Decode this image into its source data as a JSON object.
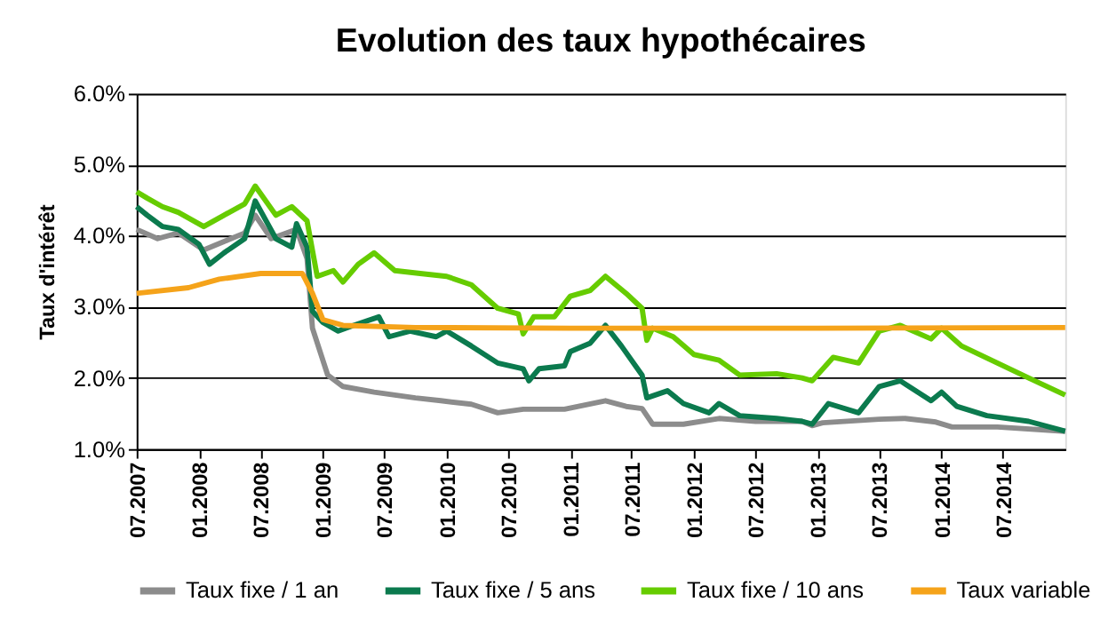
{
  "chart_data": {
    "type": "line",
    "title": "Evolution des taux hypothécaires",
    "ylabel": "Taux d'intérêt",
    "ylim": [
      1,
      6
    ],
    "yticks": [
      {
        "value": 1,
        "label": "1.0%"
      },
      {
        "value": 2,
        "label": "2.0%"
      },
      {
        "value": 3,
        "label": "3.0%"
      },
      {
        "value": 4,
        "label": "4.0%"
      },
      {
        "value": 5,
        "label": "5.0%"
      },
      {
        "value": 6,
        "label": "6.0%"
      }
    ],
    "xlim": [
      "2007-07-01",
      "2015-01-01"
    ],
    "xticks": [
      {
        "value": "2007-07-01",
        "label": "07.2007"
      },
      {
        "value": "2008-01-01",
        "label": "01.2008"
      },
      {
        "value": "2008-07-01",
        "label": "07.2008"
      },
      {
        "value": "2009-01-01",
        "label": "01.2009"
      },
      {
        "value": "2009-07-01",
        "label": "07.2009"
      },
      {
        "value": "2010-01-01",
        "label": "01.2010"
      },
      {
        "value": "2010-07-01",
        "label": "07.2010"
      },
      {
        "value": "2011-01-01",
        "label": "01.2011"
      },
      {
        "value": "2011-07-01",
        "label": "07.2011"
      },
      {
        "value": "2012-01-01",
        "label": "01.2012"
      },
      {
        "value": "2012-07-01",
        "label": "07.2012"
      },
      {
        "value": "2013-01-01",
        "label": "01.2013"
      },
      {
        "value": "2013-07-01",
        "label": "07.2013"
      },
      {
        "value": "2014-01-01",
        "label": "01.2014"
      },
      {
        "value": "2014-07-01",
        "label": "07.2014"
      }
    ],
    "grid": "y",
    "legend": "bottom",
    "marker": "none",
    "line_style": "solid",
    "series": [
      {
        "name": "Taux fixe / 1 an",
        "color": "#8c8c8c",
        "x": [
          "2007-07-01",
          "2007-09-01",
          "2007-11-01",
          "2008-01-15",
          "2008-03-15",
          "2008-05-15",
          "2008-06-15",
          "2008-08-01",
          "2008-10-15",
          "2008-11-15",
          "2008-12-01",
          "2009-01-15",
          "2009-03-01",
          "2009-06-01",
          "2009-10-01",
          "2009-12-15",
          "2010-03-15",
          "2010-06-01",
          "2010-08-15",
          "2010-12-15",
          "2011-04-15",
          "2011-06-15",
          "2011-08-01",
          "2011-09-01",
          "2011-12-01",
          "2012-03-15",
          "2012-07-01",
          "2012-11-15",
          "2012-12-15",
          "2013-01-15",
          "2013-07-01",
          "2013-09-15",
          "2013-12-15",
          "2014-02-01",
          "2014-06-15",
          "2015-01-01"
        ],
        "values": [
          4.09,
          3.96,
          4.04,
          3.8,
          3.92,
          4.04,
          4.29,
          3.96,
          4.09,
          3.68,
          2.7,
          2.04,
          1.88,
          1.8,
          1.72,
          1.68,
          1.63,
          1.51,
          1.56,
          1.56,
          1.68,
          1.6,
          1.57,
          1.35,
          1.35,
          1.43,
          1.39,
          1.39,
          1.33,
          1.37,
          1.42,
          1.43,
          1.38,
          1.31,
          1.31,
          1.25
        ]
      },
      {
        "name": "Taux fixe / 5 ans",
        "color": "#0b7a4e",
        "x": [
          "2007-07-01",
          "2007-08-01",
          "2007-09-15",
          "2007-11-01",
          "2008-01-01",
          "2008-02-01",
          "2008-03-15",
          "2008-05-15",
          "2008-06-15",
          "2008-08-15",
          "2008-10-01",
          "2008-10-15",
          "2008-11-15",
          "2008-12-01",
          "2009-01-01",
          "2009-02-15",
          "2009-04-01",
          "2009-06-15",
          "2009-07-15",
          "2009-09-15",
          "2009-12-01",
          "2010-01-01",
          "2010-03-15",
          "2010-06-01",
          "2010-08-15",
          "2010-09-01",
          "2010-10-01",
          "2010-12-15",
          "2011-01-01",
          "2011-03-01",
          "2011-04-15",
          "2011-06-01",
          "2011-08-01",
          "2011-08-15",
          "2011-10-15",
          "2011-12-01",
          "2012-02-15",
          "2012-03-15",
          "2012-05-15",
          "2012-09-01",
          "2012-11-15",
          "2012-12-15",
          "2013-02-01",
          "2013-05-01",
          "2013-07-01",
          "2013-09-01",
          "2013-12-01",
          "2014-01-01",
          "2014-02-15",
          "2014-05-15",
          "2014-09-15",
          "2015-01-01"
        ],
        "values": [
          4.41,
          4.29,
          4.13,
          4.09,
          3.88,
          3.6,
          3.76,
          3.96,
          4.49,
          3.96,
          3.84,
          4.17,
          3.84,
          2.94,
          2.78,
          2.66,
          2.74,
          2.86,
          2.58,
          2.66,
          2.58,
          2.66,
          2.45,
          2.21,
          2.13,
          1.96,
          2.13,
          2.17,
          2.37,
          2.49,
          2.74,
          2.45,
          2.04,
          1.72,
          1.82,
          1.64,
          1.51,
          1.64,
          1.47,
          1.43,
          1.39,
          1.35,
          1.64,
          1.51,
          1.88,
          1.96,
          1.68,
          1.8,
          1.6,
          1.47,
          1.39,
          1.25
        ]
      },
      {
        "name": "Taux fixe / 10 ans",
        "color": "#66cc00",
        "x": [
          "2007-07-01",
          "2007-08-01",
          "2007-09-15",
          "2007-11-01",
          "2008-01-15",
          "2008-03-15",
          "2008-05-15",
          "2008-06-15",
          "2008-08-15",
          "2008-10-01",
          "2008-11-15",
          "2008-12-15",
          "2009-02-01",
          "2009-03-01",
          "2009-04-15",
          "2009-06-01",
          "2009-08-01",
          "2009-10-15",
          "2010-01-01",
          "2010-03-15",
          "2010-06-01",
          "2010-08-01",
          "2010-08-15",
          "2010-09-15",
          "2010-11-15",
          "2011-01-01",
          "2011-03-01",
          "2011-04-15",
          "2011-06-15",
          "2011-08-01",
          "2011-08-15",
          "2011-09-01",
          "2011-11-01",
          "2012-01-01",
          "2012-03-15",
          "2012-05-15",
          "2012-09-01",
          "2012-11-15",
          "2012-12-15",
          "2013-02-15",
          "2013-05-01",
          "2013-07-01",
          "2013-09-01",
          "2013-12-01",
          "2014-01-01",
          "2014-03-01",
          "2014-06-15",
          "2014-09-15",
          "2015-01-01"
        ],
        "values": [
          4.62,
          4.53,
          4.41,
          4.33,
          4.13,
          4.29,
          4.45,
          4.7,
          4.29,
          4.41,
          4.21,
          3.43,
          3.51,
          3.35,
          3.6,
          3.76,
          3.51,
          3.47,
          3.43,
          3.31,
          2.98,
          2.9,
          2.62,
          2.86,
          2.86,
          3.15,
          3.23,
          3.43,
          3.19,
          2.98,
          2.53,
          2.7,
          2.58,
          2.33,
          2.25,
          2.04,
          2.06,
          2.0,
          1.96,
          2.29,
          2.21,
          2.66,
          2.74,
          2.55,
          2.7,
          2.45,
          2.21,
          2.0,
          1.76
        ]
      },
      {
        "name": "Taux variable",
        "color": "#f5a31a",
        "x": [
          "2007-07-01",
          "2007-12-01",
          "2008-03-01",
          "2008-07-01",
          "2008-11-01",
          "2008-12-01",
          "2009-01-01",
          "2009-03-01",
          "2009-10-01",
          "2011-01-01",
          "2013-01-01",
          "2015-01-01"
        ],
        "values": [
          3.19,
          3.27,
          3.39,
          3.47,
          3.47,
          3.19,
          2.82,
          2.74,
          2.71,
          2.7,
          2.7,
          2.71
        ]
      }
    ]
  }
}
